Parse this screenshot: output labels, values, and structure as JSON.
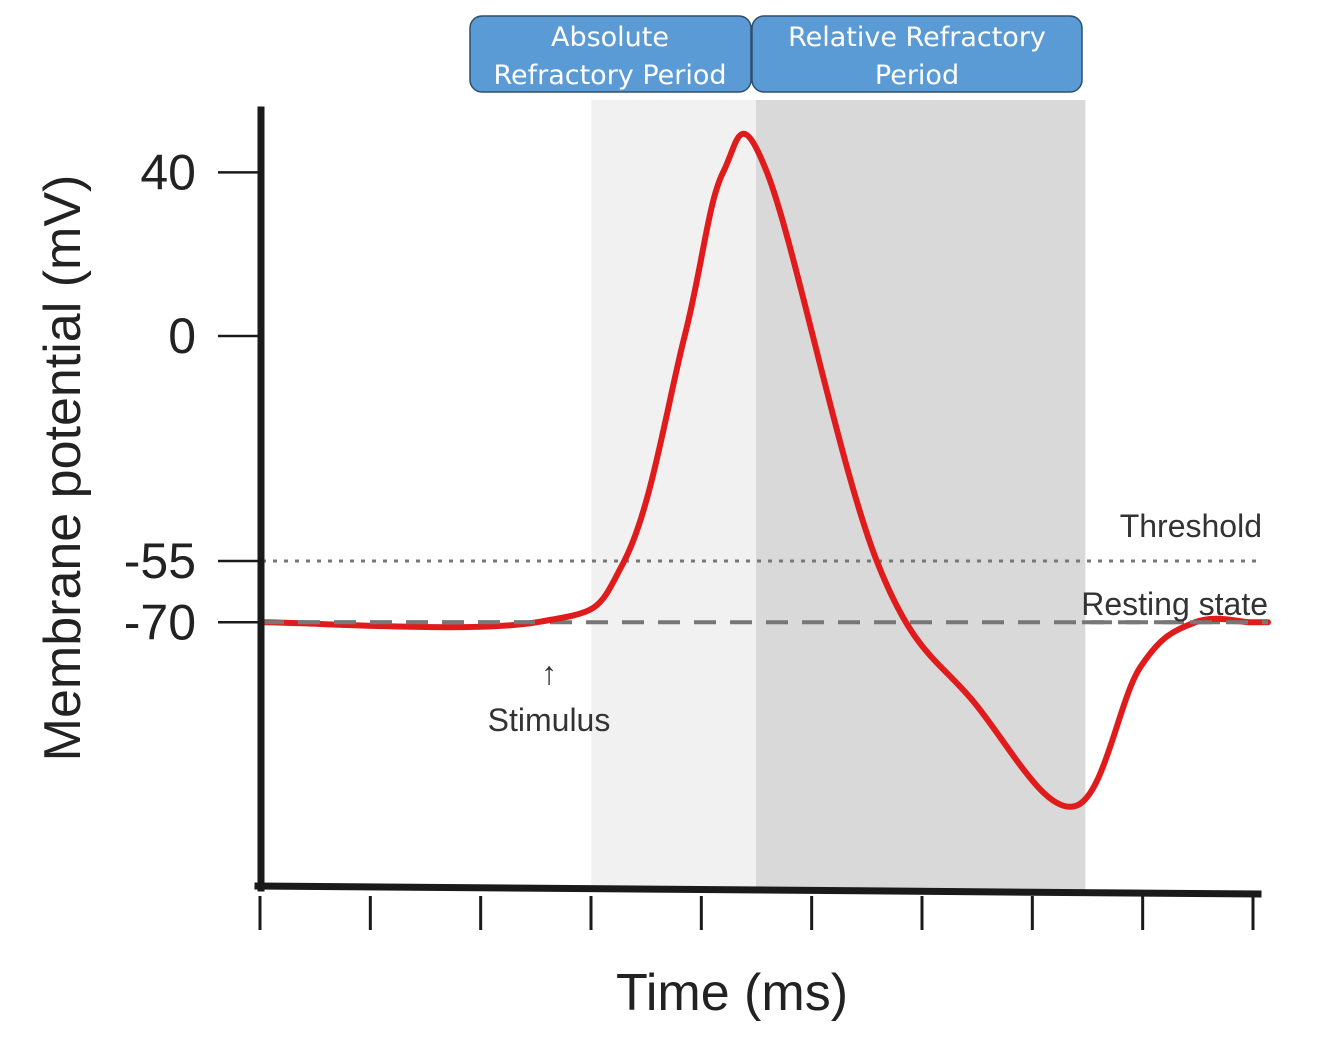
{
  "chart_data": {
    "type": "line",
    "title": "",
    "xlabel": "Time (ms)",
    "ylabel": "Membrane potential (mV)",
    "y_ticks": [
      "40",
      "0",
      "-55",
      "-70"
    ],
    "x_tick_count": 10,
    "grid": false,
    "colors": {
      "trace": "#e01b1b",
      "reference_line": "#777777",
      "absolute_shade": "#f1f1f1",
      "relative_shade": "#d9d9d9",
      "period_box_fill": "#5b9bd5",
      "period_box_stroke": "#2f4f6f",
      "axis": "#1a1a1a"
    },
    "series": [
      {
        "x": [
          0,
          2.5,
          3.3,
          3.85,
          4.2,
          4.6,
          5.6,
          6.5,
          7.4,
          8.0,
          8.5,
          9.0
        ],
        "y": [
          -70,
          -70,
          -55,
          0,
          40,
          40,
          -55,
          -90,
          -115,
          -81,
          -70,
          -70
        ]
      }
    ],
    "periods": [
      {
        "label_line1": "Absolute",
        "label_line2": "Refractory Period",
        "x_start": 3.0,
        "x_end": 4.5
      },
      {
        "label_line1": "Relative Refractory",
        "label_line2": "Period",
        "x_start": 4.5,
        "x_end": 7.5
      }
    ],
    "reference_lines": [
      {
        "label": "Threshold",
        "y": -55,
        "style": "dotted"
      },
      {
        "label": "Resting state",
        "y": -70,
        "style": "dashed"
      }
    ],
    "annotations": [
      {
        "arrow": "↑",
        "label": "Stimulus",
        "x": 2.6
      }
    ]
  }
}
